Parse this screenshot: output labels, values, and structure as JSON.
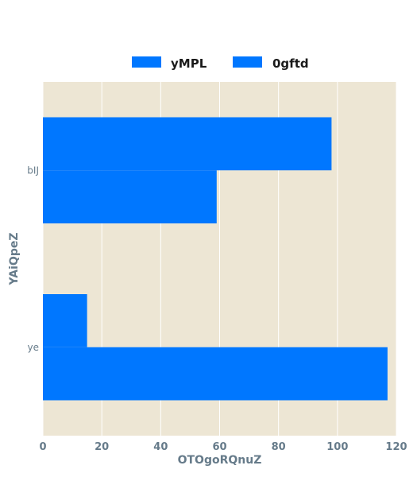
{
  "chart_data": {
    "type": "bar",
    "orientation": "horizontal",
    "categories": [
      "bIJ",
      "ye"
    ],
    "series": [
      {
        "name": "yMPL",
        "values": [
          98,
          15
        ],
        "color": "#0077ff"
      },
      {
        "name": "0gftd",
        "values": [
          59,
          117
        ],
        "color": "#0077ff"
      }
    ],
    "xlabel": "OTOgoRQnuZ",
    "ylabel": "YAiQpeZ",
    "xlim": [
      0,
      120
    ],
    "xticks": [
      0,
      20,
      40,
      60,
      80,
      100,
      120
    ],
    "grid": true,
    "legend_position": "top",
    "background": "#ede6d4",
    "grid_color": "#ffffff"
  }
}
